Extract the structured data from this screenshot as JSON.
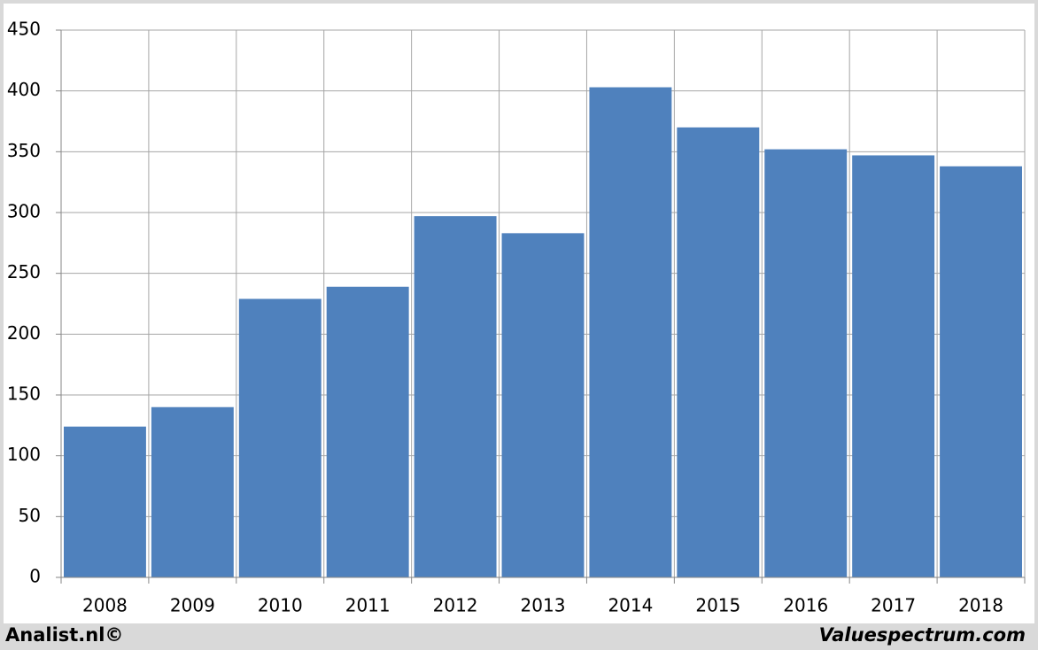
{
  "chart_data": {
    "type": "bar",
    "categories": [
      "2008",
      "2009",
      "2010",
      "2011",
      "2012",
      "2013",
      "2014",
      "2015",
      "2016",
      "2017",
      "2018"
    ],
    "values": [
      124,
      140,
      229,
      239,
      297,
      283,
      403,
      370,
      352,
      347,
      338
    ],
    "color": "#4f81bd",
    "ylim": [
      0,
      450
    ],
    "yticks": [
      0,
      50,
      100,
      150,
      200,
      250,
      300,
      350,
      400,
      450
    ],
    "grid": true,
    "footer_left": "Analist.nl©",
    "footer_right": "Valuespectrum.com"
  }
}
